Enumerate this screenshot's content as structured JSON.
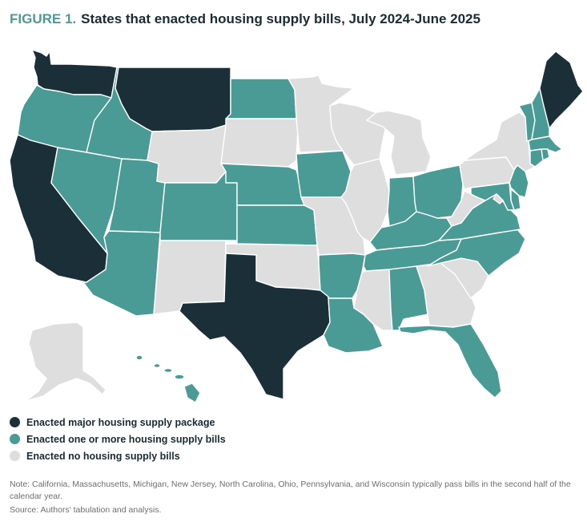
{
  "figure": {
    "number": "FIGURE 1.",
    "title": "States that enacted housing supply bills, July 2024-June 2025"
  },
  "colors": {
    "major": "#1b2f38",
    "some": "#4a9b95",
    "none": "#dedede",
    "label": "#4a9b95"
  },
  "legend": [
    {
      "key": "major",
      "label": "Enacted major housing supply package"
    },
    {
      "key": "some",
      "label": "Enacted one or more housing supply bills"
    },
    {
      "key": "none",
      "label": "Enacted no housing supply bills"
    }
  ],
  "states": {
    "WA": "major",
    "OR": "some",
    "CA": "major",
    "ID": "some",
    "MT": "major",
    "NV": "some",
    "UT": "some",
    "AZ": "some",
    "WY": "none",
    "CO": "some",
    "NM": "none",
    "ND": "some",
    "SD": "none",
    "NE": "some",
    "KS": "some",
    "OK": "none",
    "TX": "major",
    "MN": "none",
    "IA": "some",
    "MO": "none",
    "AR": "some",
    "LA": "some",
    "WI": "none",
    "IL": "none",
    "MI": "none",
    "IN": "some",
    "OH": "some",
    "KY": "some",
    "TN": "some",
    "MS": "none",
    "AL": "some",
    "GA": "none",
    "FL": "some",
    "SC": "none",
    "NC": "some",
    "VA": "some",
    "WV": "none",
    "PA": "none",
    "NY": "none",
    "VT": "some",
    "NH": "some",
    "ME": "major",
    "MA": "some",
    "RI": "some",
    "CT": "some",
    "NJ": "some",
    "DE": "some",
    "MD": "some",
    "DC": "none",
    "AK": "none",
    "HI": "some"
  },
  "note": "Note: California, Massachusetts, Michigan, New Jersey, North Carolina, Ohio, Pennsylvania, and Wisconsin typically pass bills in the second half of the calendar year.",
  "source": "Source: Authors' tabulation and analysis."
}
